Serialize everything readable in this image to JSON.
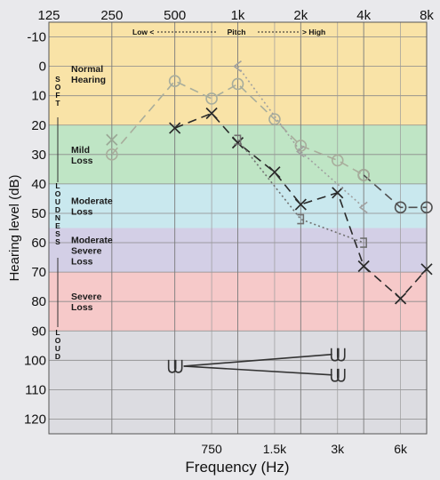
{
  "chart_data": {
    "type": "line",
    "xlabel": "Frequency (Hz)",
    "ylabel": "Hearing level (dB)",
    "x_top_ticks": [
      "125",
      "250",
      "500",
      "1k",
      "2k",
      "4k",
      "8k"
    ],
    "x_bottom_ticks": [
      "750",
      "1.5k",
      "3k",
      "6k"
    ],
    "y_ticks": [
      "-10",
      "0",
      "10",
      "20",
      "30",
      "40",
      "50",
      "60",
      "70",
      "80",
      "90",
      "100",
      "110",
      "120"
    ],
    "ylim": [
      -15,
      125
    ],
    "x_scale": "log2 (octaves)",
    "pitch_scale": {
      "low": "Low",
      "middle": "Pitch",
      "high": "High"
    },
    "loudness_scale": {
      "soft": "SOFT",
      "middle": "LOUDNESS",
      "loud": "LOUD"
    },
    "bands": [
      {
        "name": "Normal Hearing",
        "range": [
          -15,
          20
        ],
        "color": "#f9e3a7"
      },
      {
        "name": "Mild Loss",
        "range": [
          20,
          40
        ],
        "color": "#bfe5c5"
      },
      {
        "name": "Moderate Loss",
        "range": [
          40,
          55
        ],
        "color": "#c9e8ee"
      },
      {
        "name": "Moderate Severe Loss",
        "range": [
          55,
          70
        ],
        "color": "#d3cfe6"
      },
      {
        "name": "Severe Loss",
        "range": [
          70,
          90
        ],
        "color": "#f6c9c9"
      },
      {
        "name": "",
        "range": [
          90,
          125
        ],
        "color": "#dcdce1"
      }
    ],
    "series": [
      {
        "marker": "O",
        "style": "dash",
        "color": "#505050",
        "points": [
          [
            4000,
            37
          ],
          [
            6000,
            48
          ],
          [
            8000,
            48
          ]
        ]
      },
      {
        "marker": "O",
        "style": "dash",
        "color": "#a8ad9c",
        "points": [
          [
            250,
            30
          ],
          [
            500,
            5
          ],
          [
            750,
            11
          ],
          [
            1000,
            6
          ],
          [
            1500,
            18
          ],
          [
            2000,
            27
          ],
          [
            3000,
            32
          ],
          [
            4000,
            37
          ]
        ]
      },
      {
        "marker": "X",
        "style": "dash",
        "color": "#2a2a2a",
        "points": [
          [
            500,
            21
          ],
          [
            750,
            16
          ],
          [
            1000,
            26
          ],
          [
            1500,
            36
          ],
          [
            2000,
            47
          ],
          [
            3000,
            43
          ],
          [
            4000,
            68
          ],
          [
            6000,
            79
          ],
          [
            8000,
            69
          ]
        ]
      },
      {
        "marker": "X",
        "style": "none",
        "color": "#9aa896",
        "points": [
          [
            250,
            25
          ]
        ]
      },
      {
        "marker": "<",
        "style": "dotted",
        "color": "#a0a0a0",
        "points": [
          [
            1000,
            0
          ],
          [
            2000,
            29
          ],
          [
            4000,
            48
          ]
        ]
      },
      {
        "marker": "]",
        "style": "dotted",
        "color": "#707070",
        "points": [
          [
            1000,
            25
          ],
          [
            2000,
            52
          ],
          [
            4000,
            60
          ]
        ]
      },
      {
        "marker": "U",
        "style": "solid",
        "color": "#333333",
        "points": [
          [
            500,
            102
          ],
          [
            3000,
            98
          ],
          [
            3000,
            105
          ]
        ]
      }
    ],
    "grid": true
  }
}
